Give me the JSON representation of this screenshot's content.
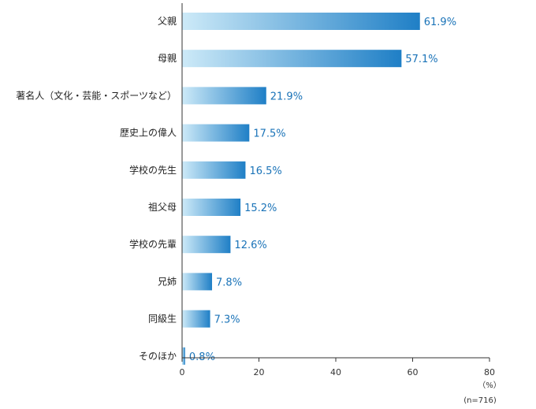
{
  "chart_data": {
    "type": "bar",
    "orientation": "horizontal",
    "categories": [
      "父親",
      "母親",
      "著名人（文化・芸能・スポーツなど）",
      "歴史上の偉人",
      "学校の先生",
      "祖父母",
      "学校の先輩",
      "兄姉",
      "同級生",
      "そのほか"
    ],
    "values": [
      61.9,
      57.1,
      21.9,
      17.5,
      16.5,
      15.2,
      12.6,
      7.8,
      7.3,
      0.8
    ],
    "value_labels": [
      "61.9%",
      "57.1%",
      "21.9%",
      "17.5%",
      "16.5%",
      "15.2%",
      "12.6%",
      "7.8%",
      "7.3%",
      "0.8%"
    ],
    "xlim": [
      0,
      80
    ],
    "x_ticks": [
      0,
      20,
      40,
      60,
      80
    ],
    "x_tick_labels": [
      "0",
      "20",
      "40",
      "60",
      "80"
    ],
    "unit_label": "（%）",
    "note": "(n=716)",
    "grid": false,
    "colors": {
      "bar_start": "#cdeaf8",
      "bar_end": "#1f7fc6",
      "value_text": "#1a73b8",
      "axis": "#333333"
    }
  }
}
